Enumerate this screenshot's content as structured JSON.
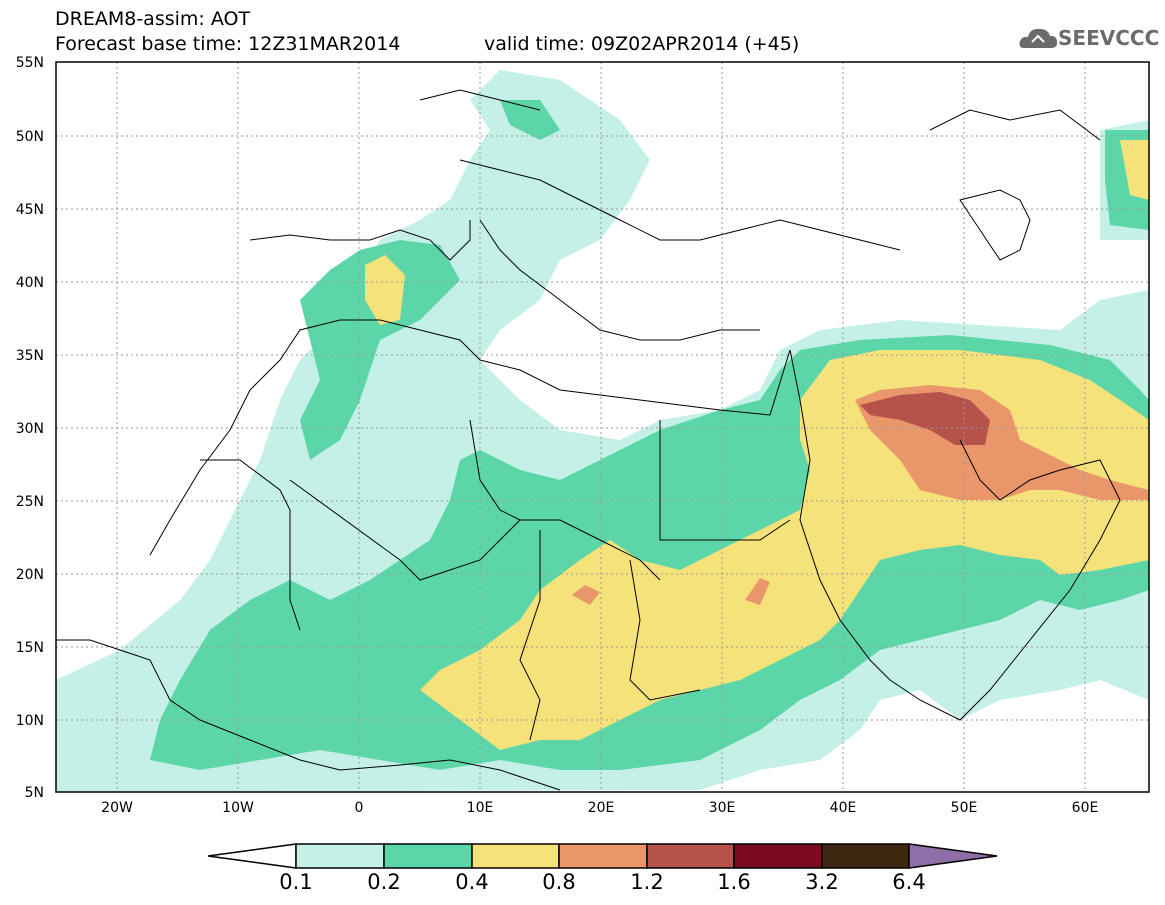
{
  "title": {
    "line1": "DREAM8-assim: AOT",
    "line2": "Forecast base time: 12Z31MAR2014",
    "line2b": "valid time: 09Z02APR2014 (+45)"
  },
  "logo": {
    "text": "SEEVCCC",
    "icon": "cloud-icon"
  },
  "map": {
    "lon_range": [
      -25,
      65
    ],
    "lat_range": [
      5,
      55
    ],
    "lat_ticks": [
      "55N",
      "50N",
      "45N",
      "40N",
      "35N",
      "30N",
      "25N",
      "20N",
      "15N",
      "10N",
      "5N"
    ],
    "lon_ticks": [
      "20W",
      "10W",
      "0",
      "10E",
      "20E",
      "30E",
      "40E",
      "50E",
      "60E"
    ],
    "grid": "dashed"
  },
  "colorbar": {
    "colors": [
      "#ffffff",
      "#c4f0e8",
      "#5cd6a8",
      "#f5e27a",
      "#e9966a",
      "#b5534a",
      "#7a0a22",
      "#3d2812",
      "#8f6fa8"
    ],
    "labels": [
      "0.1",
      "0.2",
      "0.4",
      "0.8",
      "1.2",
      "1.6",
      "3.2",
      "6.4"
    ]
  }
}
